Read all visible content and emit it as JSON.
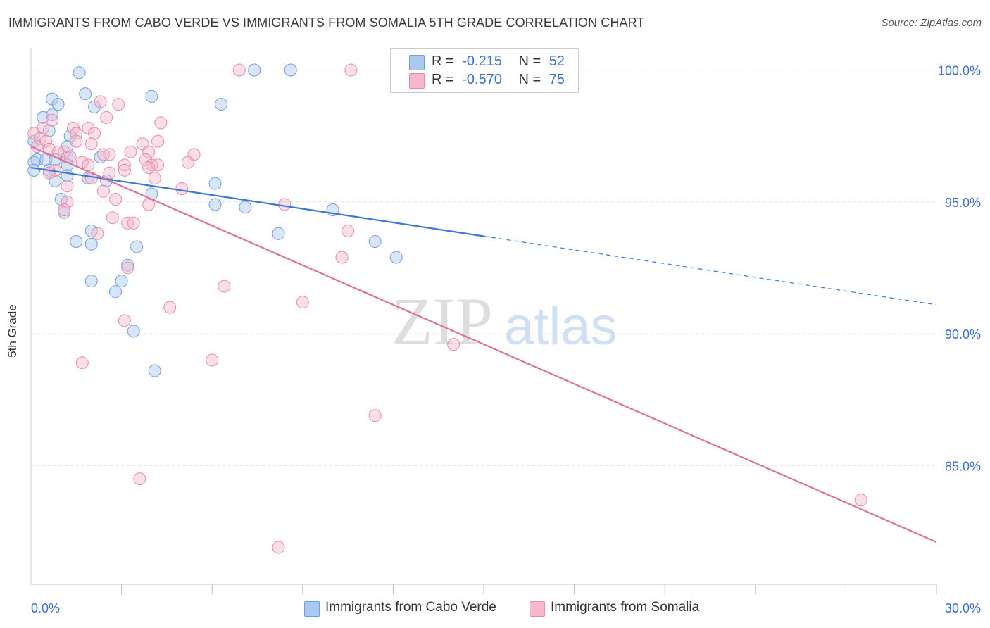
{
  "title": "IMMIGRANTS FROM CABO VERDE VS IMMIGRANTS FROM SOMALIA 5TH GRADE CORRELATION CHART",
  "source": "Source: ZipAtlas.com",
  "watermark": {
    "zip": "ZIP",
    "atlas": "atlas"
  },
  "legend_box": {
    "rows": [
      {
        "r_label": "R =",
        "r_value": "-0.215",
        "n_label": "N =",
        "n_value": "52",
        "color": "#aac8f0"
      },
      {
        "r_label": "R =",
        "r_value": "-0.570",
        "n_label": "N =",
        "n_value": "75",
        "color": "#f7b8cc"
      }
    ]
  },
  "bottom_legend": [
    {
      "label": "Immigrants from Cabo Verde",
      "color": "#aac8f0"
    },
    {
      "label": "Immigrants from Somalia",
      "color": "#f7b8cc"
    }
  ],
  "chart_data": {
    "type": "scatter",
    "title": "IMMIGRANTS FROM CABO VERDE VS IMMIGRANTS FROM SOMALIA 5TH GRADE CORRELATION CHART",
    "xlabel": "",
    "ylabel": "5th Grade",
    "xlim": [
      0,
      30
    ],
    "ylim": [
      80.5,
      101
    ],
    "x_tick_labels": [
      "0.0%",
      "30.0%"
    ],
    "y_ticks": [
      85,
      90,
      95,
      100
    ],
    "y_tick_labels": [
      "85.0%",
      "90.0%",
      "95.0%",
      "100.0%"
    ],
    "grid": true,
    "legend_position": "top-center",
    "colors": {
      "cabo_verde": "#3b78d6",
      "somalia": "#e0709a",
      "tick_label": "#3b6fd0"
    },
    "series": [
      {
        "name": "Immigrants from Cabo Verde",
        "color": "#3b78d6",
        "fill": "#aac8f0",
        "points": [
          [
            1.6,
            99.9
          ],
          [
            1.8,
            99.1
          ],
          [
            4.0,
            99.0
          ],
          [
            6.3,
            98.7
          ],
          [
            7.4,
            100.0
          ],
          [
            8.6,
            100.0
          ],
          [
            0.7,
            98.9
          ],
          [
            0.9,
            98.7
          ],
          [
            2.1,
            98.6
          ],
          [
            0.4,
            98.2
          ],
          [
            0.7,
            98.3
          ],
          [
            0.6,
            97.7
          ],
          [
            1.3,
            97.5
          ],
          [
            0.1,
            97.3
          ],
          [
            1.2,
            97.1
          ],
          [
            2.3,
            96.7
          ],
          [
            0.2,
            96.6
          ],
          [
            0.5,
            96.6
          ],
          [
            0.8,
            96.6
          ],
          [
            1.2,
            96.7
          ],
          [
            0.1,
            96.5
          ],
          [
            1.2,
            96.4
          ],
          [
            0.6,
            96.2
          ],
          [
            0.1,
            96.2
          ],
          [
            1.2,
            96.0
          ],
          [
            1.9,
            95.9
          ],
          [
            2.5,
            95.8
          ],
          [
            0.8,
            95.8
          ],
          [
            6.1,
            95.7
          ],
          [
            4.0,
            95.3
          ],
          [
            1.0,
            95.1
          ],
          [
            6.1,
            94.9
          ],
          [
            7.1,
            94.8
          ],
          [
            10.0,
            94.7
          ],
          [
            1.1,
            94.6
          ],
          [
            2.0,
            93.9
          ],
          [
            8.2,
            93.8
          ],
          [
            1.5,
            93.5
          ],
          [
            2.0,
            93.4
          ],
          [
            11.4,
            93.5
          ],
          [
            3.5,
            93.3
          ],
          [
            12.1,
            92.9
          ],
          [
            3.2,
            92.6
          ],
          [
            2.0,
            92.0
          ],
          [
            3.0,
            92.0
          ],
          [
            2.8,
            91.6
          ],
          [
            3.4,
            90.1
          ],
          [
            4.1,
            88.6
          ]
        ],
        "trend": {
          "x0": 0,
          "y0": 96.3,
          "x1": 15.0,
          "y1": 93.7,
          "dashed_to_x": 30,
          "dashed_to_y": 91.1
        }
      },
      {
        "name": "Immigrants from Somalia",
        "color": "#e0709a",
        "fill": "#f7b8cc",
        "points": [
          [
            6.9,
            100.0
          ],
          [
            10.6,
            100.0
          ],
          [
            2.3,
            98.8
          ],
          [
            2.9,
            98.7
          ],
          [
            2.5,
            98.2
          ],
          [
            0.7,
            98.1
          ],
          [
            4.3,
            98.0
          ],
          [
            0.4,
            97.8
          ],
          [
            1.4,
            97.8
          ],
          [
            1.9,
            97.8
          ],
          [
            0.1,
            97.6
          ],
          [
            1.5,
            97.6
          ],
          [
            2.1,
            97.6
          ],
          [
            0.3,
            97.4
          ],
          [
            0.5,
            97.3
          ],
          [
            1.5,
            97.3
          ],
          [
            4.2,
            97.3
          ],
          [
            3.7,
            97.2
          ],
          [
            2.0,
            97.2
          ],
          [
            0.2,
            97.1
          ],
          [
            0.6,
            97.0
          ],
          [
            1.1,
            96.9
          ],
          [
            3.3,
            96.9
          ],
          [
            0.9,
            96.9
          ],
          [
            2.4,
            96.8
          ],
          [
            5.4,
            96.8
          ],
          [
            3.9,
            96.9
          ],
          [
            2.6,
            96.8
          ],
          [
            1.3,
            96.7
          ],
          [
            3.8,
            96.6
          ],
          [
            1.7,
            96.5
          ],
          [
            5.2,
            96.5
          ],
          [
            3.1,
            96.4
          ],
          [
            4.0,
            96.4
          ],
          [
            4.2,
            96.4
          ],
          [
            1.9,
            96.4
          ],
          [
            3.9,
            96.3
          ],
          [
            0.8,
            96.2
          ],
          [
            0.6,
            96.1
          ],
          [
            2.6,
            96.1
          ],
          [
            3.1,
            96.2
          ],
          [
            4.1,
            95.9
          ],
          [
            2.0,
            95.9
          ],
          [
            1.2,
            95.6
          ],
          [
            5.0,
            95.5
          ],
          [
            2.4,
            95.4
          ],
          [
            2.8,
            95.1
          ],
          [
            1.2,
            95.0
          ],
          [
            8.4,
            94.9
          ],
          [
            3.9,
            94.9
          ],
          [
            1.1,
            94.7
          ],
          [
            2.7,
            94.4
          ],
          [
            3.2,
            94.2
          ],
          [
            3.4,
            94.2
          ],
          [
            10.5,
            93.9
          ],
          [
            2.2,
            93.8
          ],
          [
            10.3,
            92.9
          ],
          [
            3.2,
            92.5
          ],
          [
            6.4,
            91.8
          ],
          [
            9.0,
            91.2
          ],
          [
            4.6,
            91.0
          ],
          [
            3.1,
            90.5
          ],
          [
            14.0,
            89.6
          ],
          [
            6.0,
            89.0
          ],
          [
            1.7,
            88.9
          ],
          [
            11.4,
            86.9
          ],
          [
            3.6,
            84.5
          ],
          [
            27.5,
            83.7
          ],
          [
            8.2,
            81.9
          ]
        ],
        "trend": {
          "x0": 0,
          "y0": 97.1,
          "x1": 30,
          "y1": 82.1
        }
      }
    ]
  }
}
